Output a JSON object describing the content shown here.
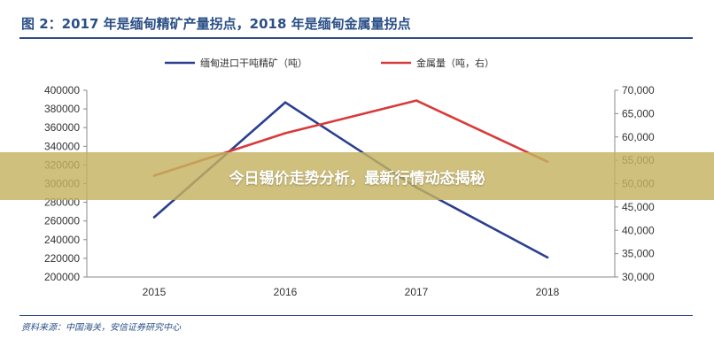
{
  "figure_title": "图 2：2017 年是缅甸精矿产量拐点，2018 年是缅甸金属量拐点",
  "source": "资料来源：中国海关，安信证券研究中心",
  "banner": "今日锡价走势分析，最新行情动态揭秘",
  "chart_data": {
    "type": "line",
    "x": [
      "2015",
      "2016",
      "2017",
      "2018"
    ],
    "legend_position": "top",
    "grid": false,
    "series": [
      {
        "name": "缅甸进口干吨精矿（吨）",
        "axis": "left",
        "color": "#2b3f8f",
        "values": [
          264000,
          387000,
          296000,
          221000
        ]
      },
      {
        "name": "金属量（吨，右）",
        "axis": "right",
        "color": "#d93a3a",
        "values": [
          51700,
          60800,
          67800,
          54700
        ]
      }
    ],
    "y_left": {
      "lim": [
        200000,
        400000
      ],
      "ticks": [
        "200000",
        "220000",
        "240000",
        "260000",
        "280000",
        "300000",
        "320000",
        "340000",
        "360000",
        "380000",
        "400000"
      ]
    },
    "y_right": {
      "lim": [
        30000,
        70000
      ],
      "ticks": [
        "30,000",
        "35,000",
        "40,000",
        "45,000",
        "50,000",
        "55,000",
        "60,000",
        "65,000",
        "70,000"
      ]
    }
  }
}
